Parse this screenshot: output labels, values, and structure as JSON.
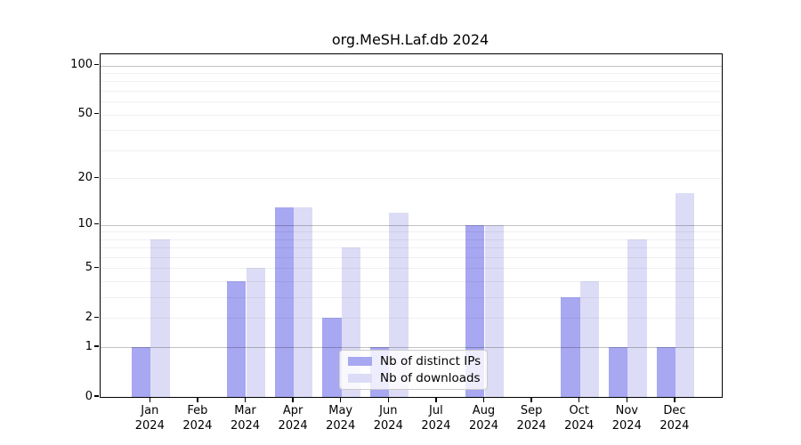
{
  "title": "org.MeSH.Laf.db 2024",
  "chart_data": {
    "type": "bar",
    "title": "org.MeSH.Laf.db 2024",
    "categories": [
      "Jan",
      "Feb",
      "Mar",
      "Apr",
      "May",
      "Jun",
      "Jul",
      "Aug",
      "Sep",
      "Oct",
      "Nov",
      "Dec"
    ],
    "year_label": "2024",
    "series": [
      {
        "name": "Nb of distinct IPs",
        "color": "#a7a7f2",
        "values": [
          1,
          0,
          4,
          13,
          2,
          1,
          0,
          10,
          0,
          3,
          1,
          1
        ]
      },
      {
        "name": "Nb of downloads",
        "color": "#dcdcf6",
        "values": [
          8,
          0,
          5,
          13,
          7,
          12,
          0,
          10,
          0,
          4,
          8,
          16
        ]
      }
    ],
    "y_scale": "log1p",
    "ylim": [
      0,
      117
    ],
    "y_ticks": [
      0,
      1,
      2,
      5,
      10,
      20,
      50,
      100
    ],
    "y_major_gridlines": [
      1,
      10,
      100
    ],
    "y_minor_gridlines": [
      2,
      3,
      4,
      5,
      6,
      7,
      8,
      9,
      20,
      30,
      40,
      50,
      60,
      70,
      80,
      90
    ],
    "grid": "horizontal",
    "legend_position": "bottom-center",
    "background_color": "#ffffff",
    "axis_color": "#000000"
  }
}
